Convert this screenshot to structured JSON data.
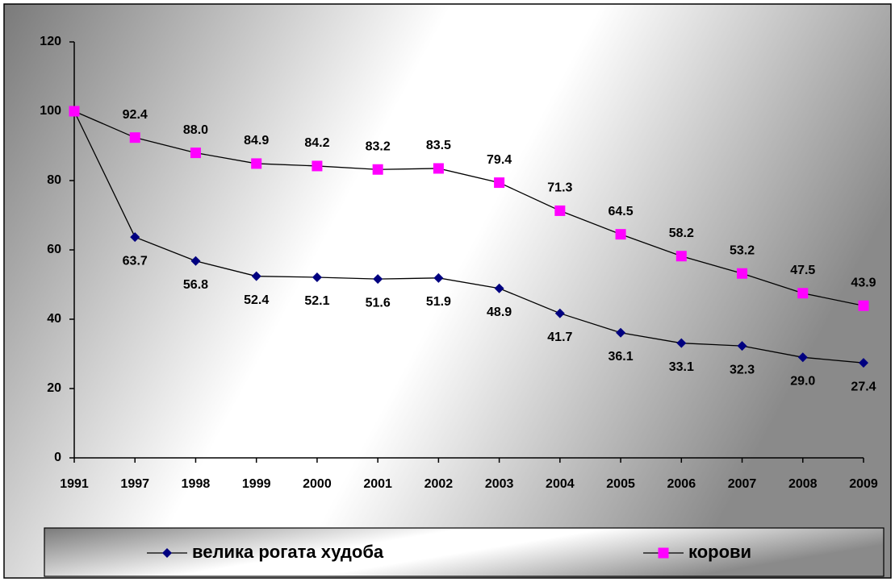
{
  "chart_data": {
    "type": "line",
    "categories": [
      "1991",
      "1997",
      "1998",
      "1999",
      "2000",
      "2001",
      "2002",
      "2003",
      "2004",
      "2005",
      "2006",
      "2007",
      "2008",
      "2009"
    ],
    "series": [
      {
        "name": "велика рогата худоба",
        "color": "#000080",
        "marker": "diamond",
        "values": [
          100,
          63.7,
          56.8,
          52.4,
          52.1,
          51.6,
          51.9,
          48.9,
          41.7,
          36.1,
          33.1,
          32.3,
          29.0,
          27.4
        ],
        "value_labels": [
          null,
          "63.7",
          "56.8",
          "52.4",
          "52.1",
          "51.6",
          "51.9",
          "48.9",
          "41.7",
          "36.1",
          "33.1",
          "32.3",
          "29.0",
          "27.4"
        ]
      },
      {
        "name": "корови",
        "color": "#ff00ff",
        "marker": "square",
        "values": [
          100,
          92.4,
          88.0,
          84.9,
          84.2,
          83.2,
          83.5,
          79.4,
          71.3,
          64.5,
          58.2,
          53.2,
          47.5,
          43.9
        ],
        "value_labels": [
          null,
          "92.4",
          "88.0",
          "84.9",
          "84.2",
          "83.2",
          "83.5",
          "79.4",
          "71.3",
          "64.5",
          "58.2",
          "53.2",
          "47.5",
          "43.9"
        ]
      }
    ],
    "ylim": [
      0,
      120
    ],
    "yticks": [
      0,
      20,
      40,
      60,
      80,
      100,
      120
    ],
    "legend": "bottom"
  }
}
